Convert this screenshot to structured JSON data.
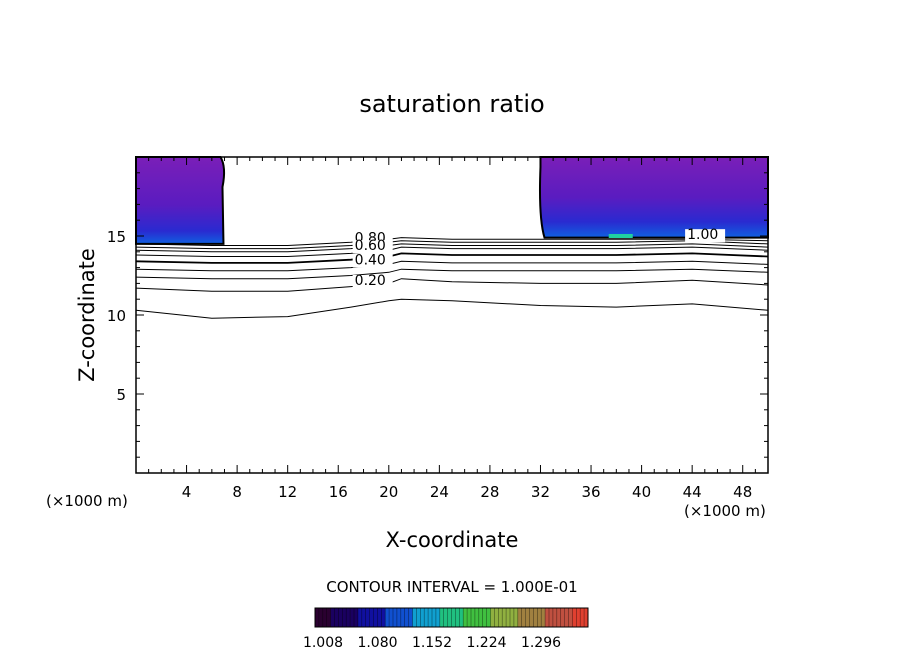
{
  "chart_data": {
    "type": "contour",
    "title": "saturation ratio",
    "xlabel": "X-coordinate",
    "ylabel": "Z-coordinate",
    "x_unit_left": "(×1000 m)",
    "x_unit_right": "(×1000 m)",
    "xlim": [
      0,
      50
    ],
    "ylim": [
      0,
      20
    ],
    "x_ticks": [
      4,
      8,
      12,
      16,
      20,
      24,
      28,
      32,
      36,
      40,
      44,
      48
    ],
    "y_ticks": [
      5,
      10,
      15
    ],
    "contour_interval_label": "CONTOUR INTERVAL = 1.000E-01",
    "contour_labels": [
      {
        "text": "0.80",
        "x": 17.3,
        "y": 14.6
      },
      {
        "text": "0.60",
        "x": 17.3,
        "y": 14.1
      },
      {
        "text": "0.40",
        "x": 17.3,
        "y": 13.2
      },
      {
        "text": "0.20",
        "x": 17.3,
        "y": 11.9
      },
      {
        "text": "1.00",
        "x": 43.6,
        "y": 14.8
      }
    ],
    "contour_lines": [
      {
        "level": 0.1,
        "points": [
          [
            0,
            10.3
          ],
          [
            6,
            9.8
          ],
          [
            12,
            9.9
          ],
          [
            17,
            10.5
          ],
          [
            20,
            10.9
          ],
          [
            21,
            11.0
          ],
          [
            25,
            10.9
          ],
          [
            32,
            10.6
          ],
          [
            38,
            10.5
          ],
          [
            44,
            10.7
          ],
          [
            50,
            10.3
          ]
        ]
      },
      {
        "level": 0.2,
        "points": [
          [
            0,
            11.7
          ],
          [
            6,
            11.5
          ],
          [
            12,
            11.5
          ],
          [
            17,
            11.8
          ],
          [
            20,
            12.0
          ],
          [
            21,
            12.3
          ],
          [
            25,
            12.1
          ],
          [
            32,
            12.0
          ],
          [
            38,
            12.0
          ],
          [
            44,
            12.2
          ],
          [
            50,
            11.9
          ]
        ]
      },
      {
        "level": 0.3,
        "points": [
          [
            0,
            12.4
          ],
          [
            6,
            12.3
          ],
          [
            12,
            12.3
          ],
          [
            17,
            12.5
          ],
          [
            20,
            12.7
          ],
          [
            21,
            12.9
          ],
          [
            25,
            12.8
          ],
          [
            32,
            12.8
          ],
          [
            38,
            12.8
          ],
          [
            44,
            12.9
          ],
          [
            50,
            12.7
          ]
        ]
      },
      {
        "level": 0.4,
        "points": [
          [
            0,
            12.9
          ],
          [
            6,
            12.8
          ],
          [
            12,
            12.8
          ],
          [
            17,
            13.0
          ],
          [
            20,
            13.2
          ],
          [
            21,
            13.4
          ],
          [
            25,
            13.3
          ],
          [
            32,
            13.3
          ],
          [
            38,
            13.3
          ],
          [
            44,
            13.4
          ],
          [
            50,
            13.2
          ]
        ]
      },
      {
        "level": 0.5,
        "points": [
          [
            0,
            13.4
          ],
          [
            6,
            13.3
          ],
          [
            12,
            13.3
          ],
          [
            17,
            13.5
          ],
          [
            20,
            13.7
          ],
          [
            21,
            13.9
          ],
          [
            25,
            13.8
          ],
          [
            32,
            13.8
          ],
          [
            38,
            13.8
          ],
          [
            44,
            13.9
          ],
          [
            50,
            13.7
          ]
        ]
      },
      {
        "level": 0.6,
        "points": [
          [
            0,
            13.8
          ],
          [
            6,
            13.7
          ],
          [
            12,
            13.7
          ],
          [
            17,
            13.9
          ],
          [
            20,
            14.1
          ],
          [
            21,
            14.3
          ],
          [
            25,
            14.2
          ],
          [
            32,
            14.2
          ],
          [
            38,
            14.2
          ],
          [
            44,
            14.3
          ],
          [
            50,
            14.1
          ]
        ]
      },
      {
        "level": 0.7,
        "points": [
          [
            0,
            14.1
          ],
          [
            6,
            14.0
          ],
          [
            12,
            14.0
          ],
          [
            17,
            14.2
          ],
          [
            20,
            14.4
          ],
          [
            21,
            14.5
          ],
          [
            25,
            14.4
          ],
          [
            32,
            14.4
          ],
          [
            38,
            14.4
          ],
          [
            44,
            14.5
          ],
          [
            50,
            14.3
          ]
        ]
      },
      {
        "level": 0.8,
        "points": [
          [
            0,
            14.3
          ],
          [
            6,
            14.2
          ],
          [
            12,
            14.2
          ],
          [
            17,
            14.4
          ],
          [
            20,
            14.6
          ],
          [
            21,
            14.7
          ],
          [
            25,
            14.6
          ],
          [
            32,
            14.6
          ],
          [
            38,
            14.6
          ],
          [
            44,
            14.7
          ],
          [
            50,
            14.5
          ]
        ]
      },
      {
        "level": 0.9,
        "points": [
          [
            0,
            14.5
          ],
          [
            6,
            14.4
          ],
          [
            12,
            14.4
          ],
          [
            17,
            14.6
          ],
          [
            20,
            14.8
          ],
          [
            21,
            14.9
          ],
          [
            25,
            14.8
          ],
          [
            32,
            14.8
          ],
          [
            38,
            14.8
          ],
          [
            44,
            14.8
          ],
          [
            50,
            14.7
          ]
        ]
      }
    ],
    "shaded_regions": [
      {
        "name": "left-supersaturated-region",
        "x_range": [
          0,
          7
        ],
        "y_range": [
          14.5,
          20
        ]
      },
      {
        "name": "right-supersaturated-region",
        "x_range": [
          32,
          50
        ],
        "y_range": [
          14.9,
          20
        ]
      }
    ],
    "colorbar": {
      "tick_labels": [
        "1.008",
        "1.080",
        "1.152",
        "1.224",
        "1.296"
      ],
      "colors": [
        "#2a0030",
        "#1a0060",
        "#1010a0",
        "#1050d0",
        "#10a0d0",
        "#20c080",
        "#40c040",
        "#90b040",
        "#a08040",
        "#c05040",
        "#e04030"
      ]
    },
    "colors": {
      "region_top": "#7a1fb8",
      "region_bottom": "#1030d8",
      "highlight": "#20d0a0"
    }
  }
}
